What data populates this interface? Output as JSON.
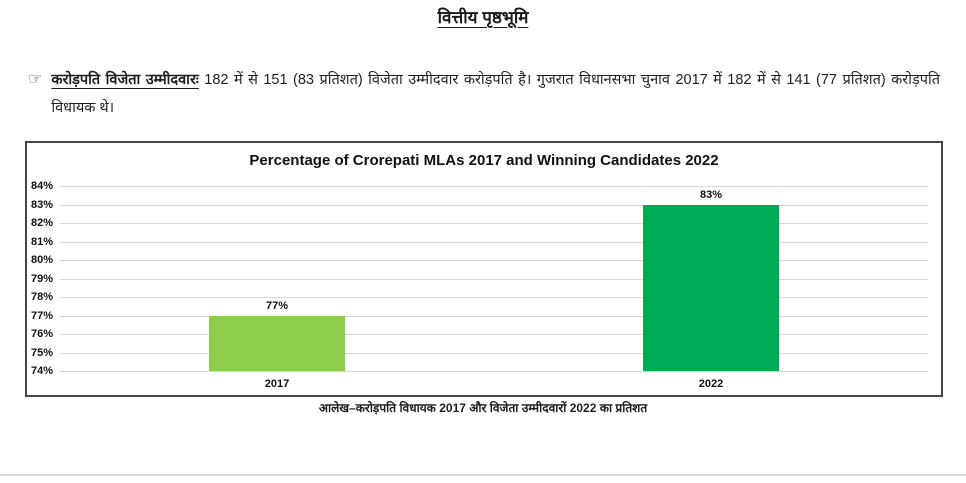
{
  "page": {
    "title": "वित्तीय पृष्ठभूमि",
    "bullet_icon": "☞",
    "bullet_lead": "करोड़पति विजेता उम्मीदवारः",
    "bullet_text": " 182 में से 151 (83 प्रतिशत) विजेता उम्मीदवार करोड़पति है। गुजरात विधानसभा चुनाव 2017 में 182 में से 141 (77 प्रतिशत) करोड़पति विधायक थे।",
    "chart_caption": "आलेख–करोड़पति विधायक 2017 और विजेता उम्मीदवारों 2022 का प्रतिशत"
  },
  "chart_data": {
    "type": "bar",
    "title": "Percentage of Crorepati MLAs 2017 and Winning Candidates 2022",
    "categories": [
      "2017",
      "2022"
    ],
    "values": [
      77,
      83
    ],
    "value_labels": [
      "77%",
      "83%"
    ],
    "bar_colors": [
      "#8DCE4C",
      "#00AB55"
    ],
    "ylim": [
      74,
      84
    ],
    "ytick_step": 1,
    "ytick_suffix": "%",
    "grid": true,
    "legend": "none",
    "xlabel": "",
    "ylabel": ""
  }
}
